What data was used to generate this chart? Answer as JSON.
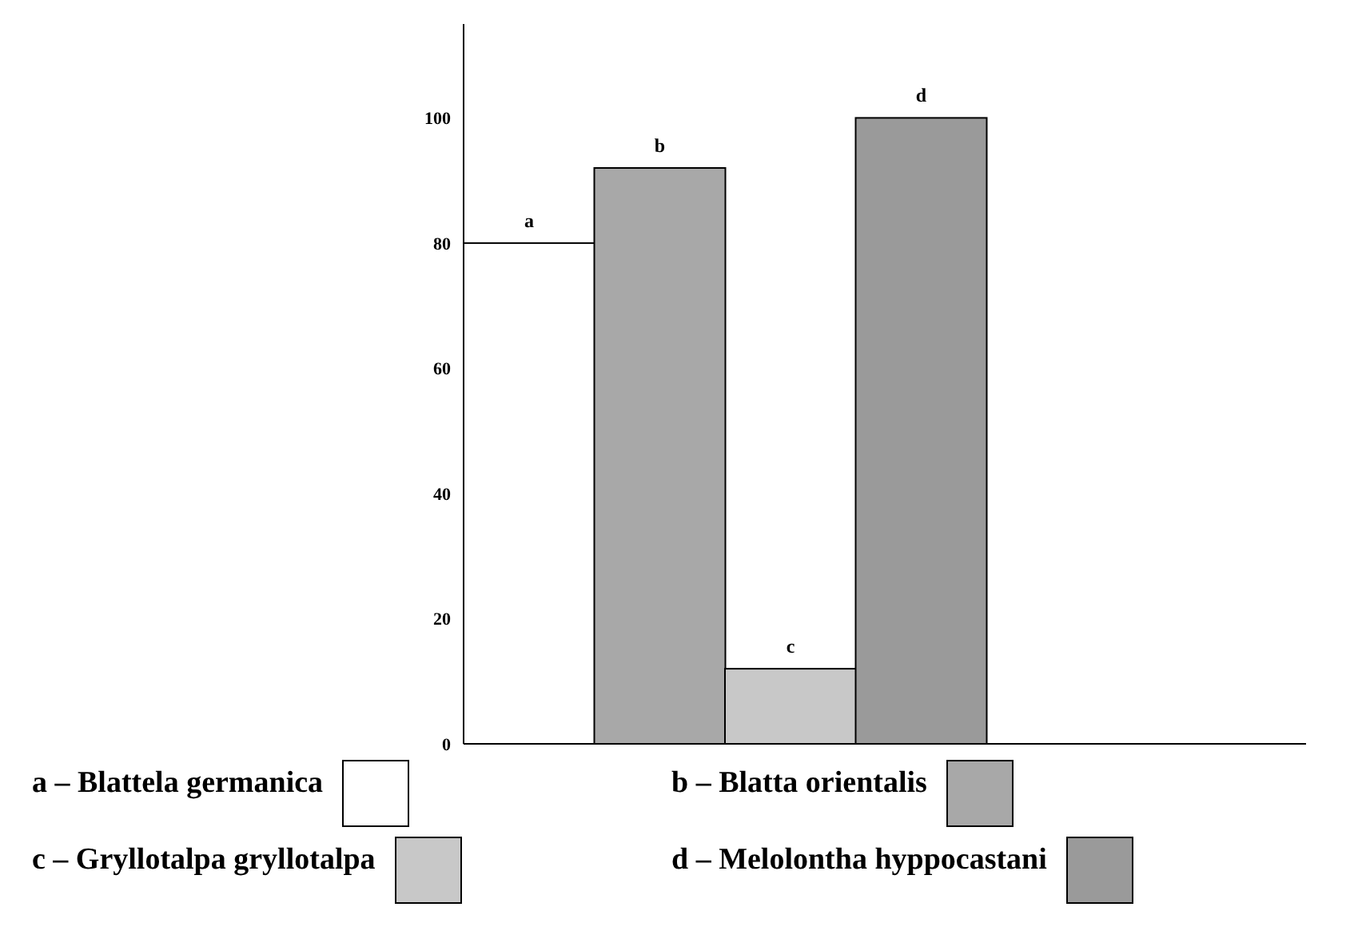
{
  "chart_data": {
    "type": "bar",
    "stacked": true,
    "categories": [
      "a",
      "b",
      "c",
      "d"
    ],
    "series": [
      {
        "name": "a – Blattela germanica",
        "color": "#ffffff",
        "values": [
          80,
          null,
          null,
          null
        ]
      },
      {
        "name": "b – Blatta orientalis",
        "color": "#a8a8a8",
        "values": [
          null,
          92,
          null,
          null
        ]
      },
      {
        "name": "c – Gryllotalpa gryllotalpa",
        "color": "#c8c8c8",
        "values": [
          null,
          null,
          12,
          null
        ]
      },
      {
        "name": "d – Melolontha hyppocastani",
        "color": "#9a9a9a",
        "values": [
          null,
          null,
          null,
          100
        ]
      }
    ],
    "ylim": [
      0,
      115
    ],
    "yticks": [
      0,
      20,
      40,
      60,
      80,
      100
    ],
    "tick_labels": "y",
    "grid": false,
    "legend": "bottom"
  }
}
